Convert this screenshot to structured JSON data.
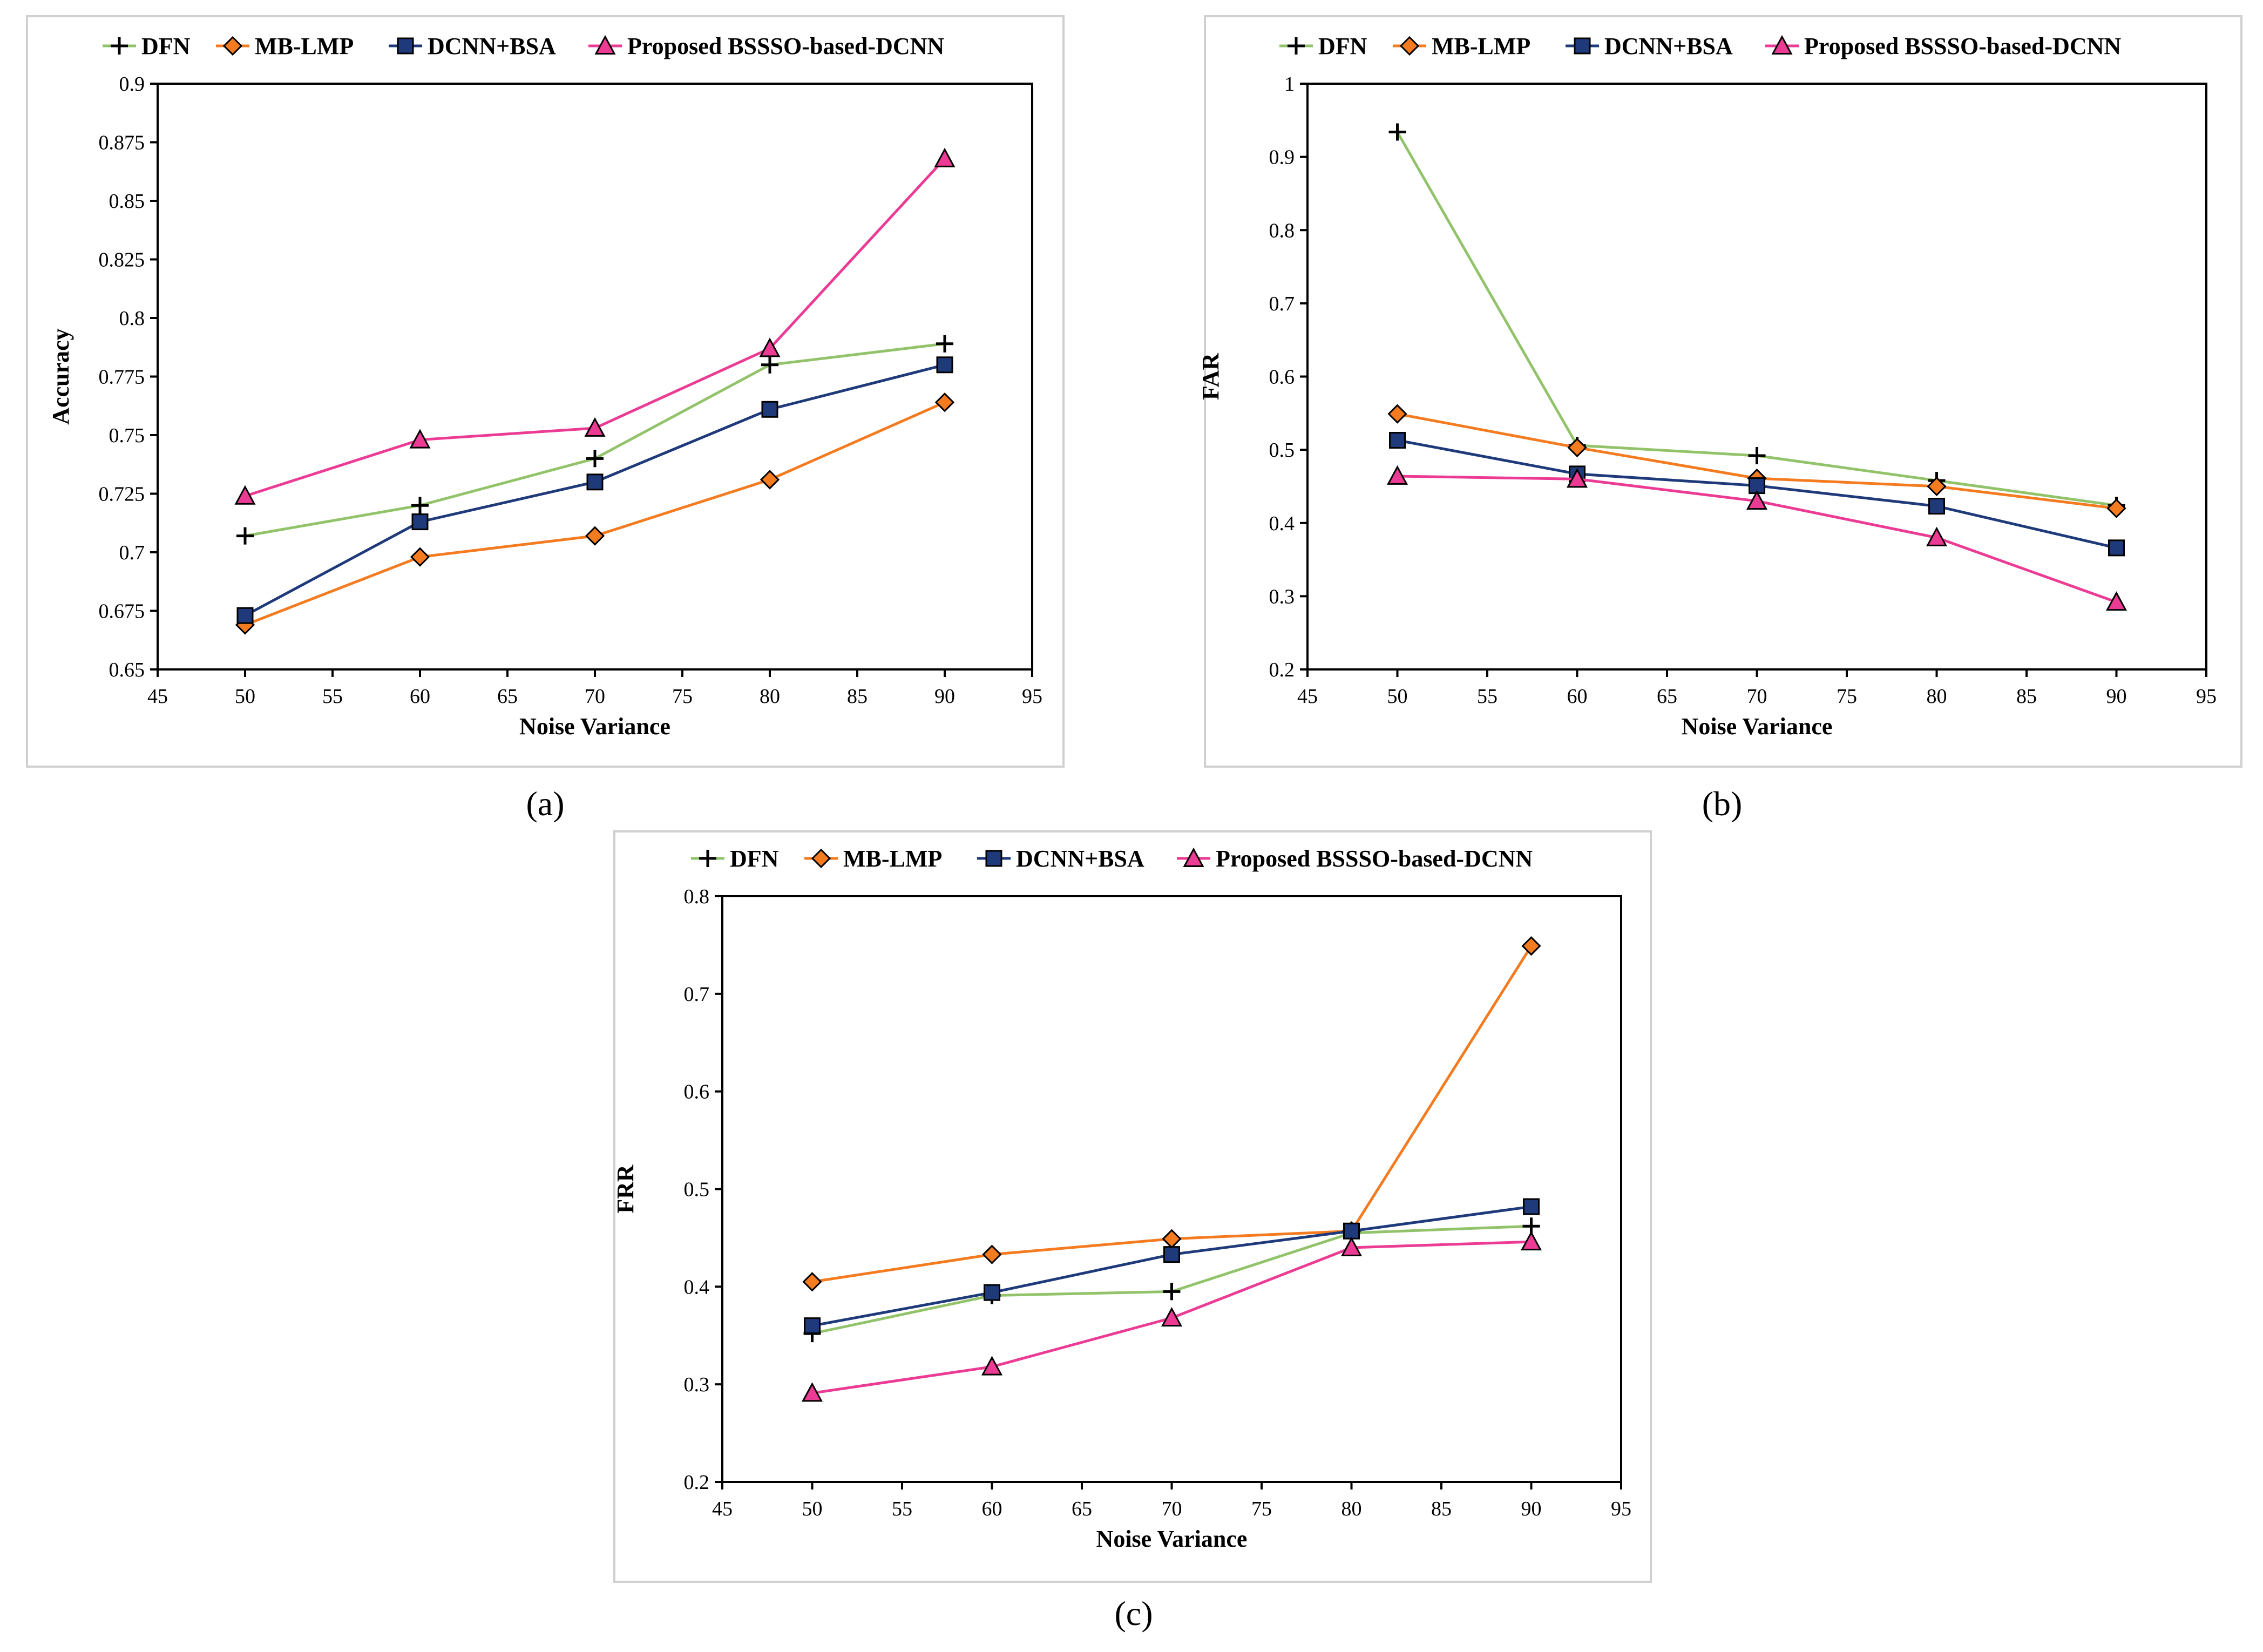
{
  "colors": {
    "DFN": "#92c36a",
    "MB-LMP": "#f47b20",
    "DCNN+BSA": "#1f3a7a",
    "Proposed BSSSO-based-DCNN": "#ec3b94"
  },
  "chart_data": [
    {
      "type": "line",
      "panel_label": "(a)",
      "xlabel": "Noise Variance",
      "ylabel": "Accuracy",
      "xlim": [
        45,
        95
      ],
      "ylim": [
        0.65,
        0.9
      ],
      "xticks": [
        45,
        50,
        55,
        60,
        65,
        70,
        75,
        80,
        85,
        90,
        95
      ],
      "xtick_labels": [
        "45",
        "50",
        "55",
        "60",
        "65",
        "70",
        "75",
        "80",
        "85",
        "90",
        "95"
      ],
      "yticks": [
        0.65,
        0.675,
        0.7,
        0.725,
        0.75,
        0.775,
        0.8,
        0.825,
        0.85,
        0.875,
        0.9
      ],
      "ytick_labels": [
        "0.65",
        "0.675",
        "0.7",
        "0.725",
        "0.75",
        "0.775",
        "0.8",
        "0.825",
        "0.85",
        "0.875",
        "0.9"
      ],
      "legend_position": "top",
      "grid": false,
      "x": [
        50,
        60,
        70,
        80,
        90
      ],
      "series": [
        {
          "name": "DFN",
          "marker": "plus",
          "values": [
            0.707,
            0.72,
            0.74,
            0.78,
            0.789
          ]
        },
        {
          "name": "MB-LMP",
          "marker": "diamond",
          "values": [
            0.669,
            0.698,
            0.707,
            0.731,
            0.764
          ]
        },
        {
          "name": "DCNN+BSA",
          "marker": "square",
          "values": [
            0.673,
            0.713,
            0.73,
            0.761,
            0.78
          ]
        },
        {
          "name": "Proposed BSSSO-based-DCNN",
          "marker": "triangle",
          "values": [
            0.724,
            0.748,
            0.753,
            0.787,
            0.868
          ]
        }
      ]
    },
    {
      "type": "line",
      "panel_label": "(b)",
      "xlabel": "Noise Variance",
      "ylabel": "FAR",
      "xlim": [
        45,
        95
      ],
      "ylim": [
        0.2,
        1.0
      ],
      "xticks": [
        45,
        50,
        55,
        60,
        65,
        70,
        75,
        80,
        85,
        90,
        95
      ],
      "xtick_labels": [
        "45",
        "50",
        "55",
        "60",
        "65",
        "70",
        "75",
        "80",
        "85",
        "90",
        "95"
      ],
      "yticks": [
        0.2,
        0.3,
        0.4,
        0.5,
        0.6,
        0.7,
        0.8,
        0.9,
        1.0
      ],
      "ytick_labels": [
        "0.2",
        "0.3",
        "0.4",
        "0.5",
        "0.6",
        "0.7",
        "0.8",
        "0.9",
        "1"
      ],
      "legend_position": "top",
      "grid": false,
      "x": [
        50,
        60,
        70,
        80,
        90
      ],
      "series": [
        {
          "name": "DFN",
          "marker": "plus",
          "values": [
            0.934,
            0.506,
            0.492,
            0.458,
            0.424
          ]
        },
        {
          "name": "MB-LMP",
          "marker": "diamond",
          "values": [
            0.549,
            0.503,
            0.461,
            0.45,
            0.42
          ]
        },
        {
          "name": "DCNN+BSA",
          "marker": "square",
          "values": [
            0.513,
            0.467,
            0.451,
            0.423,
            0.366
          ]
        },
        {
          "name": "Proposed BSSSO-based-DCNN",
          "marker": "triangle",
          "values": [
            0.464,
            0.46,
            0.43,
            0.38,
            0.292
          ]
        }
      ]
    },
    {
      "type": "line",
      "panel_label": "(c)",
      "xlabel": "Noise Variance",
      "ylabel": "FRR",
      "xlim": [
        45,
        95
      ],
      "ylim": [
        0.2,
        0.8
      ],
      "xticks": [
        45,
        50,
        55,
        60,
        65,
        70,
        75,
        80,
        85,
        90,
        95
      ],
      "xtick_labels": [
        "45",
        "50",
        "55",
        "60",
        "65",
        "70",
        "75",
        "80",
        "85",
        "90",
        "95"
      ],
      "yticks": [
        0.2,
        0.3,
        0.4,
        0.5,
        0.6,
        0.7,
        0.8
      ],
      "ytick_labels": [
        "0.2",
        "0.3",
        "0.4",
        "0.5",
        "0.6",
        "0.7",
        "0.8"
      ],
      "legend_position": "top",
      "grid": false,
      "x": [
        50,
        60,
        70,
        80,
        90
      ],
      "series": [
        {
          "name": "DFN",
          "marker": "plus",
          "values": [
            0.352,
            0.391,
            0.395,
            0.455,
            0.462
          ]
        },
        {
          "name": "MB-LMP",
          "marker": "diamond",
          "values": [
            0.405,
            0.433,
            0.449,
            0.457,
            0.749
          ]
        },
        {
          "name": "DCNN+BSA",
          "marker": "square",
          "values": [
            0.36,
            0.394,
            0.433,
            0.457,
            0.482
          ]
        },
        {
          "name": "Proposed BSSSO-based-DCNN",
          "marker": "triangle",
          "values": [
            0.291,
            0.318,
            0.368,
            0.44,
            0.446
          ]
        }
      ]
    }
  ]
}
